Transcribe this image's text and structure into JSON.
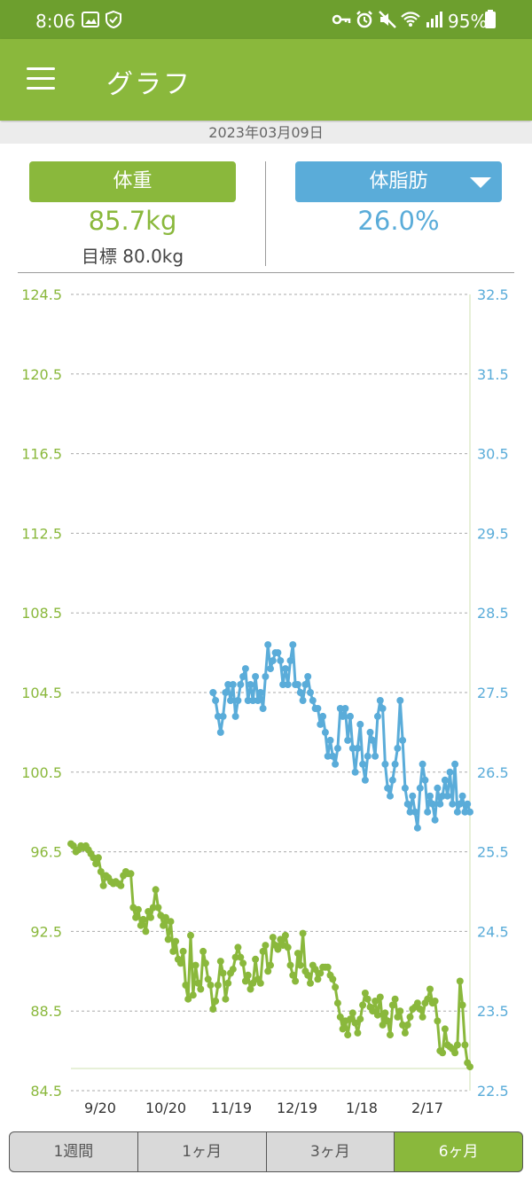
{
  "status_bar": {
    "time": "8:06",
    "battery": "95%",
    "icons": [
      "image-icon",
      "shield-icon",
      "key-icon",
      "alarm-icon",
      "mute-icon",
      "wifi-icon",
      "signal-icon",
      "battery-icon"
    ]
  },
  "app_bar": {
    "title": "グラフ",
    "menu_icon": "hamburger-menu-icon"
  },
  "date": "2023年03月09日",
  "summary": {
    "weight_button": "体重",
    "weight_value": "85.7kg",
    "goal_text": "目標 80.0kg",
    "fat_button": "体脂肪",
    "fat_value": "26.0%"
  },
  "colors": {
    "green": "#8ab83c",
    "blue": "#5aacd9",
    "status_bar": "#6d9f2e"
  },
  "chart_data": {
    "type": "line",
    "x_tick_labels": [
      "9/20",
      "10/20",
      "11/19",
      "12/19",
      "1/18",
      "2/17"
    ],
    "left_axis": {
      "series": "体重",
      "ticks": [
        "124.5",
        "120.5",
        "116.5",
        "112.5",
        "108.5",
        "104.5",
        "100.5",
        "96.5",
        "92.5",
        "88.5",
        "84.5"
      ],
      "range": [
        84.5,
        124.5
      ]
    },
    "right_axis": {
      "series": "体脂肪",
      "ticks": [
        "32.5",
        "31.5",
        "30.5",
        "29.5",
        "28.5",
        "27.5",
        "26.5",
        "25.5",
        "24.5",
        "23.5",
        "22.5"
      ],
      "range": [
        22.5,
        32.5
      ]
    },
    "goal_weight": 80.0,
    "grid": true,
    "series": [
      {
        "name": "体重",
        "color": "#8ab83c",
        "points": [
          [
            0,
            96.9
          ],
          [
            1,
            96.8
          ],
          [
            2,
            96.5
          ],
          [
            3,
            96.6
          ],
          [
            4,
            96.8
          ],
          [
            5,
            96.7
          ],
          [
            6,
            96.8
          ],
          [
            7,
            96.6
          ],
          [
            8,
            96.4
          ],
          [
            9,
            96.2
          ],
          [
            10,
            95.9
          ],
          [
            11,
            96.2
          ],
          [
            12,
            95.5
          ],
          [
            13,
            94.8
          ],
          [
            14,
            95.3
          ],
          [
            15,
            95.2
          ],
          [
            16,
            95.0
          ],
          [
            17,
            94.9
          ],
          [
            18,
            95.0
          ],
          [
            19,
            94.9
          ],
          [
            20,
            94.8
          ],
          [
            21,
            95.3
          ],
          [
            22,
            95.5
          ],
          [
            23,
            95.4
          ],
          [
            24,
            95.4
          ],
          [
            25,
            93.7
          ],
          [
            26,
            93.2
          ],
          [
            27,
            93.6
          ],
          [
            28,
            92.8
          ],
          [
            29,
            93.1
          ],
          [
            30,
            92.5
          ],
          [
            31,
            93.5
          ],
          [
            32,
            93.2
          ],
          [
            33,
            93.7
          ],
          [
            34,
            94.6
          ],
          [
            35,
            93.7
          ],
          [
            36,
            93.3
          ],
          [
            37,
            92.8
          ],
          [
            38,
            93.2
          ],
          [
            39,
            92.1
          ],
          [
            40,
            93.0
          ],
          [
            41,
            91.5
          ],
          [
            42,
            92.0
          ],
          [
            43,
            91.1
          ],
          [
            44,
            90.9
          ],
          [
            45,
            91.5
          ],
          [
            46,
            89.8
          ],
          [
            47,
            89.1
          ],
          [
            48,
            92.3
          ],
          [
            49,
            89.3
          ],
          [
            50,
            90.8
          ],
          [
            51,
            89.9
          ],
          [
            52,
            89.6
          ],
          [
            53,
            91.5
          ],
          [
            54,
            90.9
          ],
          [
            55,
            90.1
          ],
          [
            56,
            89.8
          ],
          [
            57,
            88.6
          ],
          [
            58,
            89.0
          ],
          [
            59,
            89.8
          ],
          [
            60,
            91.0
          ],
          [
            61,
            90.4
          ],
          [
            62,
            89.1
          ],
          [
            63,
            89.9
          ],
          [
            64,
            90.4
          ],
          [
            65,
            90.6
          ],
          [
            66,
            91.2
          ],
          [
            67,
            91.7
          ],
          [
            68,
            91.2
          ],
          [
            69,
            90.9
          ],
          [
            70,
            90.0
          ],
          [
            71,
            90.3
          ],
          [
            72,
            89.6
          ],
          [
            73,
            89.9
          ],
          [
            74,
            91.1
          ],
          [
            75,
            90.1
          ],
          [
            76,
            89.9
          ],
          [
            77,
            91.5
          ],
          [
            78,
            91.8
          ],
          [
            79,
            90.5
          ],
          [
            80,
            90.8
          ],
          [
            81,
            92.2
          ],
          [
            82,
            91.8
          ],
          [
            83,
            91.6
          ],
          [
            84,
            92.1
          ],
          [
            85,
            91.8
          ],
          [
            86,
            92.3
          ],
          [
            87,
            91.7
          ],
          [
            88,
            90.8
          ],
          [
            89,
            90.3
          ],
          [
            90,
            90.0
          ],
          [
            91,
            91.4
          ],
          [
            92,
            90.8
          ],
          [
            93,
            92.4
          ],
          [
            94,
            90.5
          ],
          [
            95,
            90.3
          ],
          [
            96,
            89.9
          ],
          [
            97,
            90.8
          ],
          [
            98,
            90.6
          ],
          [
            99,
            90.1
          ],
          [
            100,
            90.4
          ],
          [
            101,
            90.7
          ],
          [
            102,
            90.7
          ],
          [
            103,
            90.7
          ],
          [
            104,
            90.3
          ],
          [
            105,
            90.1
          ],
          [
            106,
            89.7
          ],
          [
            107,
            88.9
          ],
          [
            108,
            88.2
          ],
          [
            109,
            87.6
          ],
          [
            110,
            88.0
          ],
          [
            111,
            87.3
          ],
          [
            112,
            88.1
          ],
          [
            113,
            88.4
          ],
          [
            114,
            87.9
          ],
          [
            115,
            87.4
          ],
          [
            116,
            88.1
          ],
          [
            117,
            88.8
          ],
          [
            118,
            89.4
          ],
          [
            119,
            89.1
          ],
          [
            120,
            88.7
          ],
          [
            121,
            88.5
          ],
          [
            122,
            89.0
          ],
          [
            123,
            88.3
          ],
          [
            124,
            89.2
          ],
          [
            125,
            87.8
          ],
          [
            126,
            88.4
          ],
          [
            127,
            88.0
          ],
          [
            128,
            87.3
          ],
          [
            129,
            88.8
          ],
          [
            130,
            89.1
          ],
          [
            131,
            88.2
          ],
          [
            132,
            88.5
          ],
          [
            133,
            87.8
          ],
          [
            134,
            87.4
          ],
          [
            135,
            87.8
          ],
          [
            136,
            88.2
          ],
          [
            137,
            88.6
          ],
          [
            138,
            88.7
          ],
          [
            139,
            88.9
          ],
          [
            140,
            88.6
          ],
          [
            141,
            88.2
          ],
          [
            142,
            88.9
          ],
          [
            143,
            89.1
          ],
          [
            144,
            89.6
          ],
          [
            145,
            88.9
          ],
          [
            146,
            89.0
          ],
          [
            147,
            88.0
          ],
          [
            148,
            86.5
          ],
          [
            149,
            86.4
          ],
          [
            150,
            87.6
          ],
          [
            151,
            86.8
          ],
          [
            152,
            86.7
          ],
          [
            153,
            86.6
          ],
          [
            154,
            86.4
          ],
          [
            155,
            86.8
          ],
          [
            156,
            90.0
          ],
          [
            157,
            88.8
          ],
          [
            158,
            86.8
          ],
          [
            159,
            85.9
          ],
          [
            160,
            85.7
          ]
        ]
      },
      {
        "name": "体脂肪",
        "color": "#5aacd9",
        "points": [
          [
            57,
            27.5
          ],
          [
            58,
            27.4
          ],
          [
            59,
            27.2
          ],
          [
            60,
            27.0
          ],
          [
            61,
            27.2
          ],
          [
            62,
            27.5
          ],
          [
            63,
            27.6
          ],
          [
            64,
            27.4
          ],
          [
            65,
            27.6
          ],
          [
            66,
            27.2
          ],
          [
            67,
            27.4
          ],
          [
            68,
            27.6
          ],
          [
            69,
            27.7
          ],
          [
            70,
            27.8
          ],
          [
            71,
            27.4
          ],
          [
            72,
            27.6
          ],
          [
            73,
            27.4
          ],
          [
            74,
            27.7
          ],
          [
            75,
            27.4
          ],
          [
            76,
            27.5
          ],
          [
            77,
            27.3
          ],
          [
            78,
            27.7
          ],
          [
            79,
            28.1
          ],
          [
            80,
            27.8
          ],
          [
            81,
            27.9
          ],
          [
            82,
            28.0
          ],
          [
            83,
            28.0
          ],
          [
            84,
            27.9
          ],
          [
            85,
            27.6
          ],
          [
            86,
            27.8
          ],
          [
            87,
            27.6
          ],
          [
            88,
            27.9
          ],
          [
            89,
            28.1
          ],
          [
            90,
            27.6
          ],
          [
            91,
            27.6
          ],
          [
            92,
            27.5
          ],
          [
            93,
            27.4
          ],
          [
            94,
            27.6
          ],
          [
            95,
            27.7
          ],
          [
            96,
            27.5
          ],
          [
            97,
            27.4
          ],
          [
            98,
            27.3
          ],
          [
            99,
            27.3
          ],
          [
            100,
            27.1
          ],
          [
            101,
            27.2
          ],
          [
            102,
            27.0
          ],
          [
            103,
            26.7
          ],
          [
            104,
            26.9
          ],
          [
            105,
            26.7
          ],
          [
            106,
            26.6
          ],
          [
            107,
            26.8
          ],
          [
            108,
            27.3
          ],
          [
            109,
            27.2
          ],
          [
            110,
            27.3
          ],
          [
            111,
            26.9
          ],
          [
            112,
            27.2
          ],
          [
            113,
            26.8
          ],
          [
            114,
            26.5
          ],
          [
            115,
            26.8
          ],
          [
            116,
            27.1
          ],
          [
            117,
            26.6
          ],
          [
            118,
            26.4
          ],
          [
            119,
            26.7
          ],
          [
            120,
            27.0
          ],
          [
            121,
            26.9
          ],
          [
            122,
            26.7
          ],
          [
            123,
            27.2
          ],
          [
            124,
            27.4
          ],
          [
            125,
            27.3
          ],
          [
            126,
            26.6
          ],
          [
            127,
            26.3
          ],
          [
            128,
            26.2
          ],
          [
            129,
            26.4
          ],
          [
            130,
            26.6
          ],
          [
            131,
            26.8
          ],
          [
            132,
            27.4
          ],
          [
            133,
            26.9
          ],
          [
            134,
            26.3
          ],
          [
            135,
            26.1
          ],
          [
            136,
            26.0
          ],
          [
            137,
            26.2
          ],
          [
            138,
            26.0
          ],
          [
            139,
            25.8
          ],
          [
            140,
            26.3
          ],
          [
            141,
            26.6
          ],
          [
            142,
            26.4
          ],
          [
            143,
            26.0
          ],
          [
            144,
            26.2
          ],
          [
            145,
            26.1
          ],
          [
            146,
            25.9
          ],
          [
            147,
            26.3
          ],
          [
            148,
            26.1
          ],
          [
            149,
            26.2
          ],
          [
            150,
            26.4
          ],
          [
            151,
            26.2
          ],
          [
            152,
            26.5
          ],
          [
            153,
            26.1
          ],
          [
            154,
            26.6
          ],
          [
            155,
            26.0
          ],
          [
            156,
            26.1
          ],
          [
            157,
            26.2
          ],
          [
            158,
            26.0
          ],
          [
            159,
            26.1
          ],
          [
            160,
            26.0
          ]
        ]
      }
    ]
  },
  "period_tabs": [
    "1週間",
    "1ヶ月",
    "3ヶ月",
    "6ヶ月"
  ],
  "active_tab": "6ヶ月"
}
